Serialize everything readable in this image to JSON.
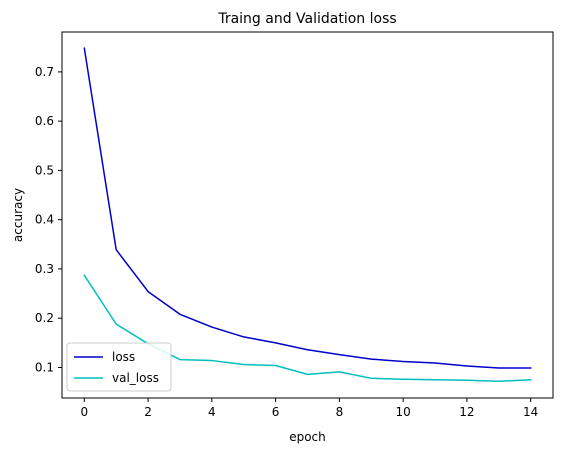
{
  "chart_data": {
    "type": "line",
    "title": "Traing and Validation loss",
    "xlabel": "epoch",
    "ylabel": "accuracy",
    "x": [
      0,
      1,
      2,
      3,
      4,
      5,
      6,
      7,
      8,
      9,
      10,
      11,
      12,
      13,
      14
    ],
    "series": [
      {
        "name": "loss",
        "color": "#0000cc",
        "values": [
          0.748,
          0.339,
          0.254,
          0.208,
          0.182,
          0.162,
          0.15,
          0.136,
          0.126,
          0.117,
          0.112,
          0.109,
          0.103,
          0.099,
          0.099
        ]
      },
      {
        "name": "val_loss",
        "color": "#00bfbf",
        "values": [
          0.287,
          0.188,
          0.148,
          0.116,
          0.114,
          0.106,
          0.104,
          0.086,
          0.091,
          0.078,
          0.076,
          0.075,
          0.074,
          0.072,
          0.075
        ]
      }
    ],
    "xlim": [
      -0.7,
      14.7
    ],
    "ylim": [
      0.038,
      0.781
    ],
    "xticks": [
      0,
      2,
      4,
      6,
      8,
      10,
      12,
      14
    ],
    "xtick_labels": [
      "0",
      "2",
      "4",
      "6",
      "8",
      "10",
      "12",
      "14"
    ],
    "yticks": [
      0.1,
      0.2,
      0.3,
      0.4,
      0.5,
      0.6,
      0.7
    ],
    "ytick_labels": [
      "0.1",
      "0.2",
      "0.3",
      "0.4",
      "0.5",
      "0.6",
      "0.7"
    ],
    "grid": false,
    "legend_position": "lower-left"
  }
}
